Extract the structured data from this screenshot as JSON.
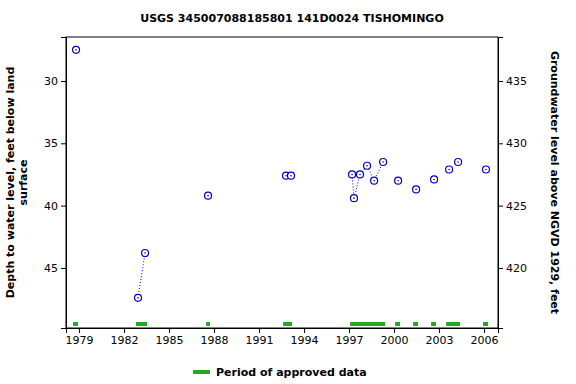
{
  "chart_data": {
    "type": "line",
    "title": "USGS 345007088185801 141D0024  TISHOMINGO",
    "ylabel": [
      "Depth to water level, feet below land",
      "surface"
    ],
    "y2label": "Groundwater level above NGVD 1929, feet",
    "xlim": [
      1978.13,
      2006.93
    ],
    "xticks": [
      1979,
      1982,
      1985,
      1988,
      1991,
      1994,
      1997,
      2000,
      2003,
      2006
    ],
    "ylim": [
      49.82,
      26.47
    ],
    "yticks": [
      30,
      35,
      40,
      45
    ],
    "y2lim": [
      415.18,
      438.53
    ],
    "y2ticks": [
      420,
      425,
      430,
      435
    ],
    "legend": "bottom",
    "series": [
      {
        "color": "#0000cc",
        "marker": "circle",
        "line_style": "dotted",
        "x": [
          1978.8,
          1980.9,
          1982.93,
          1983.4,
          1985.5,
          1987.6,
          1990.2,
          1992.8,
          1993.13,
          1995.2,
          1997.2,
          1997.33,
          1997.73,
          1998.2,
          1998.67,
          1999.27,
          1999.8,
          2000.27,
          2000.9,
          2001.47,
          2002.1,
          2002.67,
          2003.2,
          2003.67,
          2004.0,
          2004.27,
          2005.2,
          2006.13
        ],
        "values": [
          27.5,
          null,
          47.4,
          43.8,
          null,
          39.2,
          null,
          37.6,
          37.6,
          null,
          37.5,
          39.4,
          37.5,
          36.8,
          38.0,
          36.5,
          null,
          38.0,
          null,
          38.7,
          null,
          37.9,
          null,
          37.1,
          null,
          36.5,
          null,
          37.1
        ]
      },
      {
        "name": "Period of approved data",
        "type": "span",
        "color": "#22aa22",
        "values": [
          [
            1978.6,
            1978.93
          ],
          [
            1982.8,
            1983.53
          ],
          [
            1987.47,
            1987.73
          ],
          [
            1992.6,
            1993.2
          ],
          [
            1997.07,
            1999.4
          ],
          [
            2000.07,
            2000.4
          ],
          [
            2001.27,
            2001.6
          ],
          [
            2002.47,
            2002.8
          ],
          [
            2003.47,
            2004.4
          ],
          [
            2005.93,
            2006.27
          ]
        ]
      }
    ]
  }
}
